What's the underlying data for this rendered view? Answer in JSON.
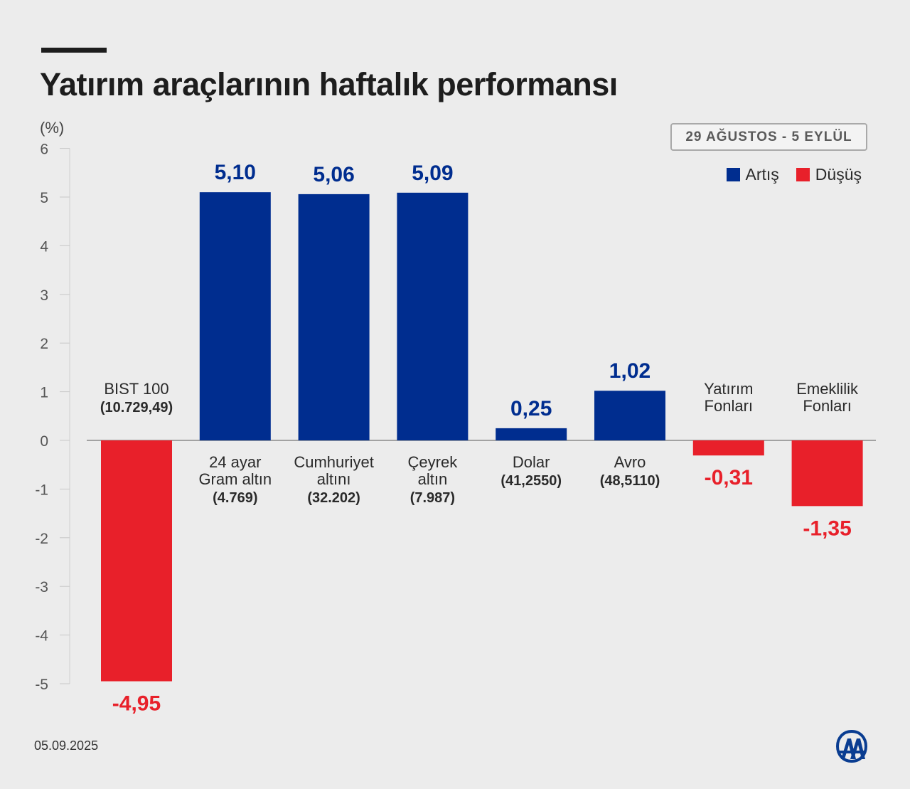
{
  "header": {
    "title": "Yatırım araçlarının haftalık performansı"
  },
  "date_range": "29 AĞUSTOS - 5 EYLÜL",
  "footer": {
    "date": "05.09.2025",
    "logo_icon": "aa-logo-icon"
  },
  "colors": {
    "increase": "#002d8f",
    "decrease": "#e8202a",
    "background": "#ececec"
  },
  "chart_data": {
    "type": "bar",
    "title": "Yatırım araçlarının haftalık performansı",
    "ylabel": "(%)",
    "xlabel": "",
    "ylim": [
      -5,
      6
    ],
    "yticks": [
      6,
      5,
      4,
      3,
      2,
      1,
      0,
      -1,
      -2,
      -3,
      -4,
      -5
    ],
    "grid": false,
    "legend_position": "top-right",
    "legend": [
      {
        "label": "Artış",
        "color": "#002d8f"
      },
      {
        "label": "Düşüş",
        "color": "#e8202a"
      }
    ],
    "categories": [
      {
        "lines": [
          "BIST 100"
        ],
        "sub": "(10.729,49)"
      },
      {
        "lines": [
          "24 ayar",
          "Gram altın"
        ],
        "sub": "(4.769)"
      },
      {
        "lines": [
          "Cumhuriyet",
          "altını"
        ],
        "sub": "(32.202)"
      },
      {
        "lines": [
          "Çeyrek",
          "altın"
        ],
        "sub": "(7.987)"
      },
      {
        "lines": [
          "Dolar"
        ],
        "sub": "(41,2550)"
      },
      {
        "lines": [
          "Avro"
        ],
        "sub": "(48,5110)"
      },
      {
        "lines": [
          "Yatırım",
          "Fonları"
        ],
        "sub": ""
      },
      {
        "lines": [
          "Emeklilik",
          "Fonları"
        ],
        "sub": ""
      }
    ],
    "values": [
      -4.95,
      5.1,
      5.06,
      5.09,
      0.25,
      1.02,
      -0.31,
      -1.35
    ],
    "value_labels": [
      "-4,95",
      "5,10",
      "5,06",
      "5,09",
      "0,25",
      "1,02",
      "-0,31",
      "-1,35"
    ]
  }
}
